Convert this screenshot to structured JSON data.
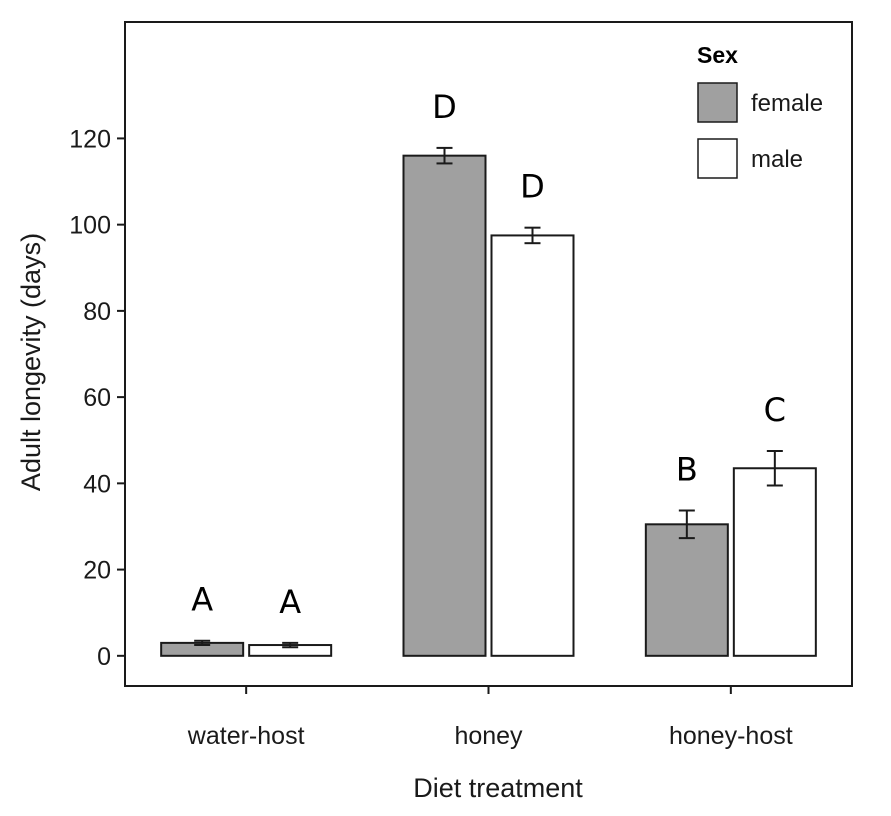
{
  "chart_data": {
    "type": "bar",
    "xlabel": "Diet treatment",
    "ylabel": "Adult longevity (days)",
    "categories": [
      "water-host",
      "honey",
      "honey-host"
    ],
    "ylim": [
      -7,
      147
    ],
    "yticks": [
      0,
      20,
      40,
      60,
      80,
      100,
      120
    ],
    "legend": {
      "title": "Sex",
      "placement": "top-right"
    },
    "grid": false,
    "series": [
      {
        "name": "female",
        "color": "#a0a0a0",
        "values": [
          3,
          116,
          30.5
        ],
        "errors": [
          0.5,
          1.8,
          3.2
        ],
        "letters": [
          "A",
          "D",
          "B"
        ]
      },
      {
        "name": "male",
        "color": "#ffffff",
        "values": [
          2.5,
          97.5,
          43.5
        ],
        "errors": [
          0.5,
          1.8,
          4.0
        ],
        "letters": [
          "A",
          "D",
          "C"
        ]
      }
    ]
  }
}
